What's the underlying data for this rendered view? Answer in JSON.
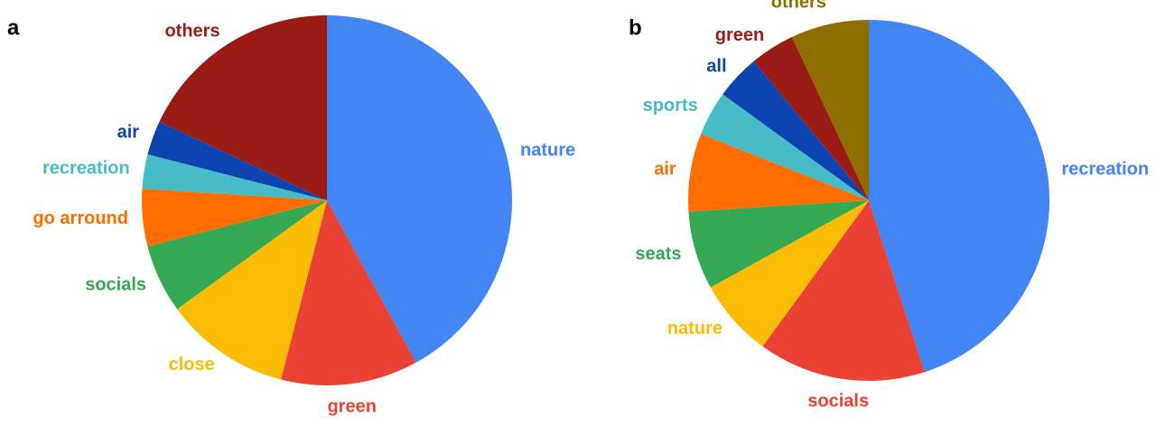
{
  "chart_data": [
    {
      "type": "pie",
      "title": "a",
      "categories": [
        "nature",
        "green",
        "close",
        "socials",
        "go arround",
        "recreation",
        "air",
        "others"
      ],
      "values": [
        42,
        12,
        11,
        6,
        5,
        3,
        3,
        18
      ],
      "colors": [
        "#4285f4",
        "#ea4335",
        "#fbbc05",
        "#34a853",
        "#ff6d01",
        "#46bdc6",
        "#0b44b0",
        "#9a1b13"
      ]
    },
    {
      "type": "pie",
      "title": "b",
      "categories": [
        "recreation",
        "socials",
        "nature",
        "seats",
        "air",
        "sports",
        "all",
        "green",
        "others"
      ],
      "values": [
        45,
        15,
        7,
        7,
        7,
        4,
        4,
        4,
        7
      ],
      "colors": [
        "#4285f4",
        "#ea4335",
        "#fbbc05",
        "#34a853",
        "#ff6d01",
        "#46bdc6",
        "#0b44b0",
        "#9a1b13",
        "#8f6e00"
      ]
    }
  ]
}
